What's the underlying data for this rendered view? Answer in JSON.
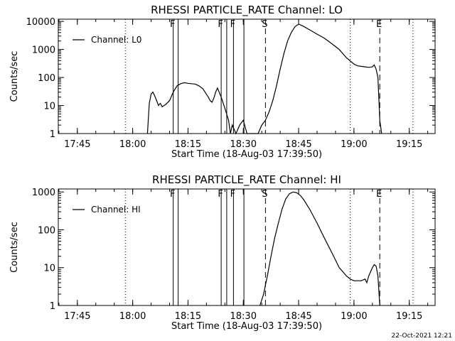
{
  "footer_date": "22-Oct-2021 12:21",
  "chart_data": [
    {
      "type": "line",
      "title": "RHESSI PARTICLE_RATE Channel: LO",
      "xlabel": "Start Time (18-Aug-03 17:39:50)",
      "ylabel": "Counts/sec",
      "y_scale": "log",
      "xlim": [
        "17:39:50",
        "19:22:00"
      ],
      "ylim": [
        1,
        12000
      ],
      "x_ticks": [
        "17:45",
        "18:00",
        "18:15",
        "18:30",
        "18:45",
        "19:00",
        "19:15"
      ],
      "y_ticks": [
        "1",
        "10",
        "100",
        "1000",
        "10000"
      ],
      "legend": {
        "placement": "top-left",
        "entries": [
          "Channel: L0"
        ]
      },
      "series": [
        {
          "name": "Channel: L0",
          "x": [
            "18:04:00",
            "18:04:30",
            "18:05:00",
            "18:05:30",
            "18:06:00",
            "18:06:30",
            "18:07:00",
            "18:07:30",
            "18:08:00",
            "18:08:30",
            "18:09:00",
            "18:10:00",
            "18:11:00",
            "18:12:00",
            "18:13:00",
            "18:14:00",
            "18:15:00",
            "18:16:00",
            "18:17:00",
            "18:18:00",
            "18:19:00",
            "18:19:30",
            "18:20:00",
            "18:20:30",
            "18:21:00",
            "18:21:30",
            "18:22:00",
            "18:22:30",
            "18:23:00",
            "18:24:00",
            "18:25:00",
            "18:26:00",
            "18:26:30",
            "18:27:00",
            "18:28:00",
            "18:29:00",
            "18:30:00",
            "18:31:00",
            "18:32:00",
            "18:33:00",
            "18:34:00",
            "18:35:00",
            "18:36:00",
            "18:37:00",
            "18:38:00",
            "18:39:00",
            "18:40:00",
            "18:41:00",
            "18:42:00",
            "18:43:00",
            "18:44:00",
            "18:45:00",
            "18:46:00",
            "18:48:00",
            "18:50:00",
            "18:52:00",
            "18:54:00",
            "18:56:00",
            "18:58:00",
            "19:00:00",
            "19:01:00",
            "19:02:00",
            "19:03:00",
            "19:04:00",
            "19:05:00",
            "19:05:30",
            "19:06:00",
            "19:06:30",
            "19:07:00",
            "19:07:30"
          ],
          "values": [
            1,
            12,
            26,
            30,
            22,
            15,
            10,
            12,
            9,
            10,
            11,
            15,
            30,
            50,
            60,
            65,
            62,
            60,
            58,
            50,
            40,
            32,
            25,
            20,
            15,
            13,
            18,
            30,
            42,
            20,
            8,
            3,
            1,
            2,
            1,
            2,
            3,
            1,
            1,
            1,
            1,
            2,
            3,
            6,
            15,
            50,
            200,
            700,
            2000,
            4000,
            6500,
            8000,
            7000,
            5000,
            3500,
            2500,
            1600,
            1000,
            500,
            300,
            260,
            250,
            240,
            230,
            240,
            280,
            200,
            100,
            3,
            1
          ]
        }
      ],
      "annotations": [
        {
          "text": "F",
          "x": "18:11:00",
          "style": "solid"
        },
        {
          "text": "",
          "x": "18:12:20",
          "style": "solid"
        },
        {
          "text": "F",
          "x": "18:24:00",
          "style": "solid"
        },
        {
          "text": "",
          "x": "18:25:30",
          "style": "solid"
        },
        {
          "text": "F",
          "x": "18:27:20",
          "style": "solid"
        },
        {
          "text": "",
          "x": "18:30:10",
          "style": "solid"
        },
        {
          "text": "S",
          "x": "18:36:00",
          "style": "dashed"
        },
        {
          "text": "E",
          "x": "19:07:00",
          "style": "dashed"
        },
        {
          "text": "",
          "x": "17:58:00",
          "style": "dotted"
        },
        {
          "text": "",
          "x": "18:59:00",
          "style": "dotted"
        },
        {
          "text": "",
          "x": "19:16:00",
          "style": "dotted"
        }
      ]
    },
    {
      "type": "line",
      "title": "RHESSI PARTICLE_RATE Channel: HI",
      "xlabel": "Start Time (18-Aug-03 17:39:50)",
      "ylabel": "Counts/sec",
      "y_scale": "log",
      "xlim": [
        "17:39:50",
        "19:22:00"
      ],
      "ylim": [
        1,
        1200
      ],
      "x_ticks": [
        "17:45",
        "18:00",
        "18:15",
        "18:30",
        "18:45",
        "19:00",
        "19:15"
      ],
      "y_ticks": [
        "1",
        "10",
        "100",
        "1000"
      ],
      "legend": {
        "placement": "top-left",
        "entries": [
          "Channel: HI"
        ]
      },
      "series": [
        {
          "name": "Channel: HI",
          "x": [
            "18:34:30",
            "18:35:30",
            "18:36:30",
            "18:37:30",
            "18:38:30",
            "18:39:30",
            "18:40:30",
            "18:41:30",
            "18:42:30",
            "18:43:30",
            "18:44:30",
            "18:45:30",
            "18:46:30",
            "18:48:00",
            "18:50:00",
            "18:52:00",
            "18:54:00",
            "18:56:00",
            "18:58:00",
            "18:59:00",
            "19:00:00",
            "19:01:00",
            "19:02:00",
            "19:03:00",
            "19:03:30",
            "19:04:00",
            "19:05:00",
            "19:05:30",
            "19:06:00",
            "19:06:30",
            "19:07:00"
          ],
          "values": [
            1,
            2,
            6,
            20,
            60,
            150,
            350,
            650,
            900,
            1000,
            950,
            800,
            600,
            350,
            150,
            60,
            25,
            10,
            6,
            5,
            4.5,
            4.5,
            4.5,
            5,
            4,
            6,
            10,
            12,
            11,
            6,
            1
          ]
        }
      ],
      "annotations": [
        {
          "text": "F",
          "x": "18:11:00",
          "style": "solid"
        },
        {
          "text": "",
          "x": "18:12:20",
          "style": "solid"
        },
        {
          "text": "F",
          "x": "18:24:00",
          "style": "solid"
        },
        {
          "text": "",
          "x": "18:25:30",
          "style": "solid"
        },
        {
          "text": "F",
          "x": "18:27:20",
          "style": "solid"
        },
        {
          "text": "",
          "x": "18:30:10",
          "style": "solid"
        },
        {
          "text": "S",
          "x": "18:36:00",
          "style": "dashed"
        },
        {
          "text": "E",
          "x": "19:07:00",
          "style": "dashed"
        },
        {
          "text": "",
          "x": "17:58:00",
          "style": "dotted"
        },
        {
          "text": "",
          "x": "18:59:00",
          "style": "dotted"
        },
        {
          "text": "",
          "x": "19:16:00",
          "style": "dotted"
        }
      ]
    }
  ]
}
